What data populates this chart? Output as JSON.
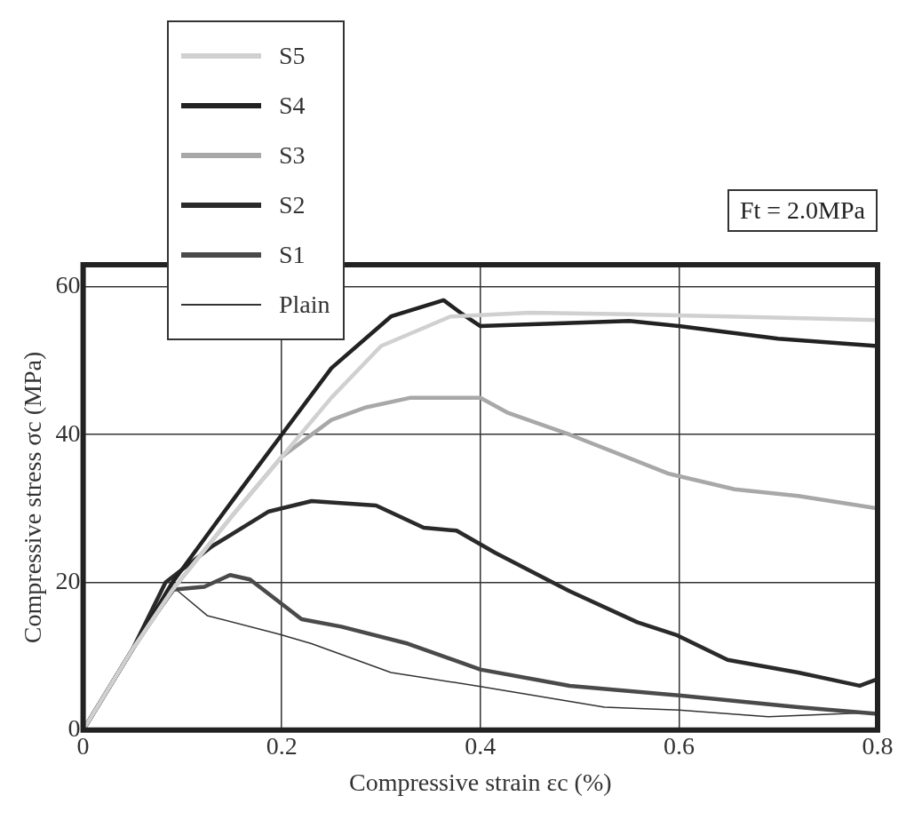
{
  "chart_data": {
    "type": "line",
    "xlabel": "Compressive strain εc (%)",
    "ylabel": "Compressive stress σc (MPa)",
    "annotations": [
      "Ft = 2.0MPa"
    ],
    "xlim": [
      0,
      0.8
    ],
    "ylim": [
      0,
      63
    ],
    "xticks": [
      0,
      0.2,
      0.4,
      0.6,
      0.8
    ],
    "yticks": [
      0,
      20,
      40,
      60
    ],
    "grid": true,
    "legend": "top left",
    "marker": "none",
    "line_style": "solid",
    "series": [
      {
        "name": "S5",
        "color": "#d0d0d0",
        "x": [
          0,
          0.05,
          0.09,
          0.15,
          0.2,
          0.25,
          0.3,
          0.37,
          0.45,
          0.55,
          0.65,
          0.8
        ],
        "values": [
          0,
          11,
          19,
          29,
          37,
          45,
          52,
          56,
          56.5,
          56.3,
          56,
          55.5
        ]
      },
      {
        "name": "S4",
        "color": "#222222",
        "x": [
          0,
          0.05,
          0.09,
          0.15,
          0.2,
          0.25,
          0.31,
          0.363,
          0.38,
          0.4,
          0.55,
          0.6,
          0.7,
          0.8
        ],
        "values": [
          0,
          11,
          20,
          31,
          40,
          49,
          56,
          58.2,
          56.5,
          54.7,
          55.4,
          54.7,
          53,
          52
        ]
      },
      {
        "name": "S3",
        "color": "#a8a8a8",
        "x": [
          0,
          0.05,
          0.09,
          0.15,
          0.2,
          0.25,
          0.285,
          0.33,
          0.4,
          0.427,
          0.49,
          0.59,
          0.656,
          0.72,
          0.8
        ],
        "values": [
          0,
          11,
          19,
          29,
          37,
          42,
          43.7,
          45,
          45,
          43,
          40,
          34.7,
          32.6,
          31.7,
          30
        ]
      },
      {
        "name": "S2",
        "color": "#2a2a2a",
        "x": [
          0,
          0.05,
          0.083,
          0.13,
          0.187,
          0.23,
          0.295,
          0.343,
          0.376,
          0.415,
          0.49,
          0.558,
          0.597,
          0.649,
          0.72,
          0.782,
          0.8
        ],
        "values": [
          0,
          11,
          20,
          24.9,
          29.6,
          31,
          30.4,
          27.4,
          27,
          24,
          18.8,
          14.6,
          12.9,
          9.5,
          7.8,
          6,
          6.9
        ]
      },
      {
        "name": "S1",
        "color": "#4a4a4a",
        "x": [
          0,
          0.05,
          0.09,
          0.122,
          0.148,
          0.168,
          0.22,
          0.26,
          0.327,
          0.4,
          0.49,
          0.6,
          0.72,
          0.8
        ],
        "values": [
          0,
          11,
          19,
          19.4,
          21,
          20.4,
          15,
          14,
          11.7,
          8.2,
          6,
          4.7,
          3.1,
          2.2
        ]
      },
      {
        "name": "Plain",
        "color": "#333333",
        "x": [
          0,
          0.05,
          0.093,
          0.125,
          0.197,
          0.23,
          0.31,
          0.4,
          0.525,
          0.6,
          0.69,
          0.8
        ],
        "values": [
          0,
          11,
          19.1,
          15.5,
          13,
          11.7,
          7.8,
          5.9,
          3.1,
          2.7,
          1.8,
          2.4
        ]
      }
    ]
  }
}
